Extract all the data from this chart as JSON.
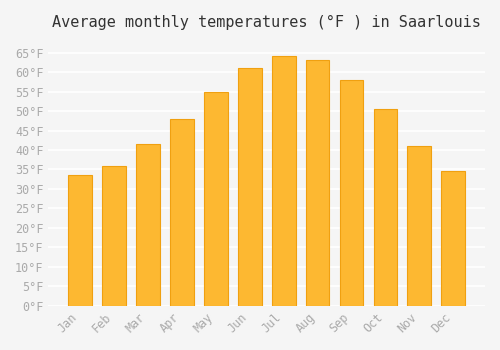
{
  "title": "Average monthly temperatures (°F ) in Saarlouis",
  "months": [
    "Jan",
    "Feb",
    "Mar",
    "Apr",
    "May",
    "Jun",
    "Jul",
    "Aug",
    "Sep",
    "Oct",
    "Nov",
    "Dec"
  ],
  "values": [
    33.5,
    36,
    41.5,
    48,
    55,
    61,
    64,
    63,
    58,
    50.5,
    41,
    34.5
  ],
  "bar_color": "#FDB831",
  "bar_edge_color": "#F0A010",
  "background_color": "#F5F5F5",
  "grid_color": "#FFFFFF",
  "text_color": "#AAAAAA",
  "title_color": "#333333",
  "ylim": [
    0,
    68
  ],
  "yticks": [
    0,
    5,
    10,
    15,
    20,
    25,
    30,
    35,
    40,
    45,
    50,
    55,
    60,
    65
  ],
  "ytick_labels": [
    "0°F",
    "5°F",
    "10°F",
    "15°F",
    "20°F",
    "25°F",
    "30°F",
    "35°F",
    "40°F",
    "45°F",
    "50°F",
    "55°F",
    "60°F",
    "65°F"
  ],
  "title_fontsize": 11,
  "tick_fontsize": 8.5,
  "font_family": "monospace"
}
